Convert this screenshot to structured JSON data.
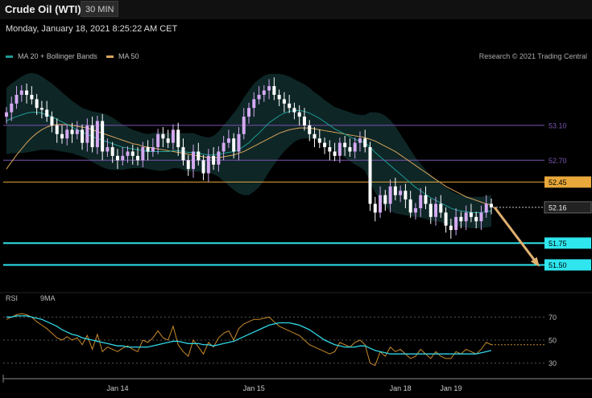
{
  "header": {
    "title": "Crude Oil (WTI)",
    "timeframe": "30 MIN"
  },
  "datetime": "Monday, January 18, 2021 8:25:22 AM CET",
  "legend": {
    "ma20": {
      "label": "MA 20 + Bollinger Bands",
      "color": "#1e9a94"
    },
    "ma50": {
      "label": "MA 50",
      "color": "#d7a35a"
    }
  },
  "research": "Research © 2021 Trading Central",
  "rsi_legend": {
    "rsi": {
      "label": "RSI",
      "color": "#c98a2a"
    },
    "ma9": {
      "label": "9MA",
      "color": "#2fd6e6"
    }
  },
  "colors": {
    "up": "#d4a9f2",
    "down": "#ffffff",
    "band": "#0f2a2a"
  },
  "chart_data": [
    {
      "type": "candlestick",
      "title": "Crude Oil (WTI)",
      "ylim": [
        51.2,
        53.8
      ],
      "levels": [
        {
          "value": 53.1,
          "label": "53.10",
          "color": "#7a55b0",
          "style": "line"
        },
        {
          "value": 52.7,
          "label": "52.70",
          "color": "#7a55b0",
          "style": "line"
        },
        {
          "value": 52.45,
          "label": "52.45",
          "color": "#e8a83a",
          "style": "line"
        },
        {
          "value": 52.16,
          "label": "52.16",
          "color": "#cccccc",
          "style": "dotted"
        },
        {
          "value": 51.75,
          "label": "51.75",
          "color": "#2fe6ef",
          "style": "line"
        },
        {
          "value": 51.5,
          "label": "51.50",
          "color": "#2fe6ef",
          "style": "line"
        }
      ],
      "close": [
        53.25,
        53.35,
        53.45,
        53.5,
        53.45,
        53.4,
        53.3,
        53.28,
        53.2,
        53.1,
        53.0,
        52.95,
        53.05,
        53.0,
        53.05,
        52.9,
        53.1,
        52.85,
        53.15,
        52.8,
        52.85,
        52.75,
        52.7,
        52.75,
        52.8,
        52.75,
        52.7,
        52.85,
        52.8,
        52.85,
        53.0,
        52.95,
        52.9,
        53.05,
        52.85,
        52.7,
        52.6,
        52.8,
        52.7,
        52.55,
        52.75,
        52.65,
        52.8,
        52.9,
        52.95,
        52.8,
        53.0,
        53.2,
        53.3,
        53.4,
        53.45,
        53.5,
        53.55,
        53.45,
        53.4,
        53.35,
        53.3,
        53.25,
        53.2,
        53.1,
        53.0,
        52.95,
        52.9,
        52.85,
        52.8,
        52.75,
        52.9,
        52.85,
        52.8,
        52.9,
        52.95,
        52.85,
        52.2,
        52.1,
        52.3,
        52.2,
        52.4,
        52.3,
        52.35,
        52.25,
        52.1,
        52.15,
        52.3,
        52.2,
        52.05,
        52.2,
        52.1,
        51.95,
        51.9,
        52.05,
        52.0,
        52.1,
        52.05,
        52.0,
        52.1,
        52.2,
        52.16
      ],
      "ma20": [
        53.15,
        53.18,
        53.2,
        53.22,
        53.24,
        53.25,
        53.25,
        53.24,
        53.22,
        53.2,
        53.17,
        53.14,
        53.11,
        53.08,
        53.05,
        53.02,
        53.0,
        52.97,
        52.95,
        52.93,
        52.91,
        52.89,
        52.87,
        52.85,
        52.84,
        52.83,
        52.82,
        52.81,
        52.8,
        52.8,
        52.8,
        52.8,
        52.8,
        52.81,
        52.81,
        52.8,
        52.79,
        52.79,
        52.78,
        52.77,
        52.76,
        52.76,
        52.77,
        52.78,
        52.79,
        52.8,
        52.82,
        52.86,
        52.9,
        52.96,
        53.01,
        53.07,
        53.13,
        53.17,
        53.21,
        53.24,
        53.26,
        53.27,
        53.27,
        53.26,
        53.24,
        53.21,
        53.18,
        53.14,
        53.1,
        53.06,
        53.03,
        53.0,
        52.97,
        52.94,
        52.92,
        52.9,
        52.85,
        52.79,
        52.74,
        52.69,
        52.64,
        52.59,
        52.54,
        52.49,
        52.44,
        52.39,
        52.35,
        52.31,
        52.27,
        52.24,
        52.21,
        52.18,
        52.15,
        52.13,
        52.12,
        52.11,
        52.1,
        52.1,
        52.1,
        52.11,
        52.12
      ],
      "ma50": [
        52.6,
        52.68,
        52.76,
        52.83,
        52.9,
        52.96,
        53.01,
        53.05,
        53.08,
        53.1,
        53.11,
        53.11,
        53.11,
        53.1,
        53.09,
        53.08,
        53.07,
        53.05,
        53.03,
        53.01,
        52.99,
        52.97,
        52.95,
        52.93,
        52.91,
        52.89,
        52.88,
        52.86,
        52.85,
        52.84,
        52.83,
        52.82,
        52.81,
        52.8,
        52.79,
        52.78,
        52.77,
        52.76,
        52.75,
        52.74,
        52.73,
        52.73,
        52.73,
        52.74,
        52.75,
        52.76,
        52.78,
        52.8,
        52.83,
        52.86,
        52.89,
        52.92,
        52.95,
        52.98,
        53.01,
        53.03,
        53.05,
        53.06,
        53.07,
        53.07,
        53.07,
        53.06,
        53.05,
        53.04,
        53.03,
        53.02,
        53.01,
        53.0,
        52.99,
        52.98,
        52.97,
        52.96,
        52.94,
        52.92,
        52.89,
        52.86,
        52.83,
        52.8,
        52.76,
        52.72,
        52.68,
        52.64,
        52.6,
        52.56,
        52.52,
        52.48,
        52.44,
        52.4,
        52.37,
        52.34,
        52.31,
        52.28,
        52.26,
        52.24,
        52.22,
        52.2,
        52.19
      ],
      "bb_halfwidth": [
        0.38,
        0.4,
        0.42,
        0.44,
        0.45,
        0.45,
        0.44,
        0.42,
        0.4,
        0.38,
        0.36,
        0.34,
        0.32,
        0.3,
        0.29,
        0.28,
        0.28,
        0.29,
        0.3,
        0.31,
        0.31,
        0.3,
        0.28,
        0.26,
        0.24,
        0.22,
        0.21,
        0.2,
        0.2,
        0.21,
        0.22,
        0.22,
        0.21,
        0.2,
        0.2,
        0.21,
        0.22,
        0.22,
        0.21,
        0.2,
        0.2,
        0.22,
        0.26,
        0.32,
        0.38,
        0.44,
        0.5,
        0.56,
        0.6,
        0.62,
        0.62,
        0.6,
        0.56,
        0.52,
        0.48,
        0.44,
        0.4,
        0.36,
        0.33,
        0.31,
        0.29,
        0.27,
        0.26,
        0.25,
        0.25,
        0.25,
        0.26,
        0.27,
        0.28,
        0.29,
        0.3,
        0.32,
        0.4,
        0.46,
        0.5,
        0.52,
        0.52,
        0.5,
        0.46,
        0.42,
        0.38,
        0.34,
        0.31,
        0.28,
        0.26,
        0.24,
        0.22,
        0.21,
        0.2,
        0.19,
        0.18,
        0.18,
        0.18,
        0.18,
        0.18,
        0.18,
        0.18
      ],
      "x_ticks": [
        {
          "label": "Jan 14",
          "index": 22
        },
        {
          "label": "Jan 15",
          "index": 49
        },
        {
          "label": "Jan 18",
          "index": 78
        },
        {
          "label": "Jan 19",
          "index": 88
        }
      ],
      "projection": {
        "from_index": 96,
        "from_value": 52.16,
        "to_value": 51.5
      }
    },
    {
      "type": "line",
      "title": "RSI",
      "ylim": [
        20,
        80
      ],
      "y_ticks": [
        30,
        50,
        70
      ],
      "series": [
        {
          "name": "RSI",
          "values": [
            68,
            70,
            72,
            73,
            72,
            70,
            66,
            63,
            60,
            56,
            52,
            50,
            53,
            50,
            52,
            46,
            54,
            42,
            55,
            40,
            44,
            42,
            40,
            43,
            45,
            42,
            40,
            50,
            48,
            52,
            58,
            52,
            50,
            62,
            46,
            40,
            36,
            50,
            44,
            38,
            48,
            44,
            52,
            56,
            58,
            50,
            60,
            64,
            66,
            68,
            68,
            69,
            70,
            66,
            62,
            60,
            58,
            56,
            54,
            50,
            46,
            44,
            42,
            40,
            38,
            40,
            48,
            46,
            44,
            48,
            50,
            46,
            30,
            28,
            40,
            36,
            44,
            40,
            42,
            38,
            34,
            36,
            42,
            38,
            34,
            40,
            36,
            34,
            34,
            40,
            38,
            42,
            40,
            38,
            42,
            48,
            46
          ]
        },
        {
          "name": "9MA",
          "values": [
            70,
            70,
            71,
            71,
            71,
            70,
            69,
            68,
            66,
            64,
            62,
            59,
            57,
            55,
            54,
            52,
            51,
            50,
            49,
            48,
            47,
            46,
            45,
            45,
            44,
            44,
            44,
            44,
            44,
            45,
            46,
            47,
            48,
            49,
            49,
            48,
            47,
            47,
            47,
            46,
            46,
            45,
            46,
            47,
            48,
            49,
            51,
            53,
            55,
            57,
            59,
            61,
            63,
            64,
            65,
            65,
            65,
            64,
            63,
            61,
            59,
            56,
            53,
            50,
            48,
            46,
            45,
            44,
            44,
            44,
            45,
            45,
            43,
            41,
            40,
            39,
            38,
            38,
            38,
            38,
            38,
            38,
            38,
            38,
            38,
            38,
            38,
            38,
            38,
            38,
            38,
            38,
            38,
            38,
            39,
            40,
            41
          ]
        }
      ],
      "x_ticks": [
        {
          "label": "Jan 14",
          "index": 22
        },
        {
          "label": "Jan 15",
          "index": 49
        },
        {
          "label": "Jan 18",
          "index": 78
        },
        {
          "label": "Jan 19",
          "index": 88
        }
      ]
    }
  ]
}
